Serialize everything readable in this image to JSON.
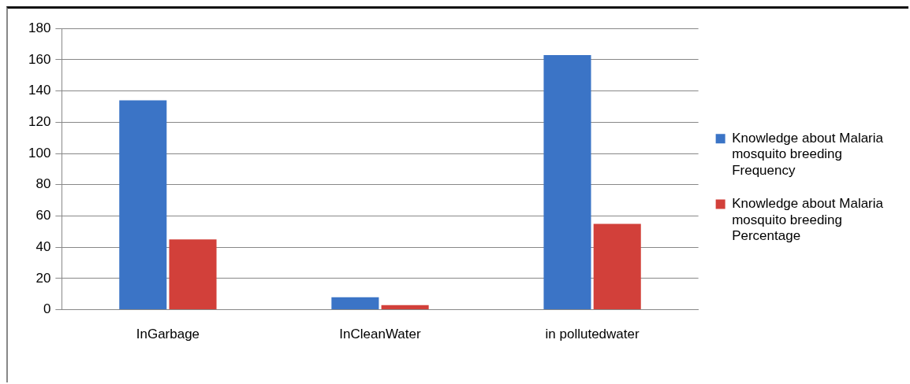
{
  "chart_data": {
    "type": "bar",
    "categories": [
      "InGarbage",
      "InCleanWater",
      "in pollutedwater"
    ],
    "series": [
      {
        "name": "Knowledge about Malaria mosquito breeding Frequency",
        "color": "#3b74c6",
        "values": [
          134,
          8,
          163
        ]
      },
      {
        "name": "Knowledge about Malaria mosquito breeding Percentage",
        "color": "#d2403a",
        "values": [
          45,
          3,
          55
        ]
      }
    ],
    "ylim": [
      0,
      180
    ],
    "yticks": [
      0,
      20,
      40,
      60,
      80,
      100,
      120,
      140,
      160,
      180
    ],
    "grid": "y",
    "legend": "right"
  }
}
